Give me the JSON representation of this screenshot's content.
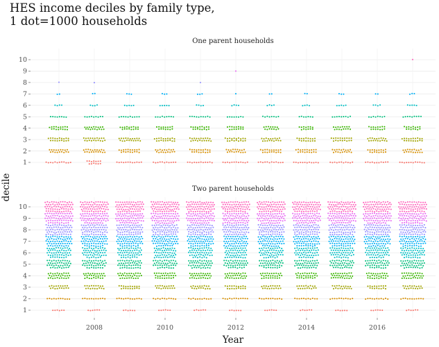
{
  "chart_data": {
    "type": "scatter",
    "chart_kind": "beeswarm dot plot (faceted)",
    "title_lines": [
      "HES income deciles by family type,",
      "1 dot=1000 households"
    ],
    "xlabel": "Year",
    "ylabel": "decile",
    "x_ticks": [
      "2008",
      "2010",
      "2012",
      "2014",
      "2016"
    ],
    "x_categories": [
      2007,
      2008,
      2009,
      2010,
      2011,
      2012,
      2013,
      2014,
      2015,
      2016,
      2017
    ],
    "y_ticks": [
      "1",
      "2",
      "3",
      "4",
      "5",
      "6",
      "7",
      "8",
      "9",
      "10"
    ],
    "ylim": [
      0.5,
      10.5
    ],
    "grid": true,
    "legend": "none",
    "decile_colors": [
      "#f8766d",
      "#d89000",
      "#a3a500",
      "#39b600",
      "#00bf7d",
      "#00bfc4",
      "#00b0f6",
      "#9590ff",
      "#e76bf3",
      "#ff62bc"
    ],
    "panels": [
      {
        "title": "One parent households",
        "dots_per_decile_by_year": [
          [
            12,
            18,
            19,
            17,
            8,
            4,
            2,
            1,
            0,
            0
          ],
          [
            13,
            20,
            20,
            18,
            9,
            4,
            2,
            1,
            0,
            0
          ],
          [
            12,
            19,
            20,
            17,
            10,
            5,
            3,
            0,
            0,
            0
          ],
          [
            11,
            18,
            19,
            15,
            9,
            5,
            3,
            0,
            0,
            0
          ],
          [
            12,
            19,
            20,
            17,
            10,
            4,
            3,
            1,
            0,
            0
          ],
          [
            12,
            18,
            19,
            15,
            8,
            4,
            1,
            0,
            1,
            0
          ],
          [
            12,
            19,
            18,
            14,
            8,
            4,
            2,
            0,
            0,
            0
          ],
          [
            12,
            19,
            17,
            13,
            7,
            4,
            2,
            0,
            0,
            0
          ],
          [
            11,
            18,
            19,
            16,
            9,
            5,
            3,
            0,
            0,
            0
          ],
          [
            11,
            17,
            18,
            15,
            8,
            4,
            2,
            0,
            0,
            0
          ],
          [
            12,
            18,
            19,
            15,
            9,
            5,
            3,
            0,
            0,
            1
          ]
        ]
      },
      {
        "title": "Two parent households",
        "dots_per_decile_by_year": [
          [
            6,
            11,
            18,
            30,
            42,
            52,
            58,
            60,
            62,
            64
          ],
          [
            6,
            11,
            18,
            29,
            41,
            51,
            57,
            59,
            61,
            63
          ],
          [
            6,
            12,
            19,
            31,
            43,
            52,
            57,
            59,
            61,
            63
          ],
          [
            6,
            11,
            18,
            29,
            41,
            50,
            56,
            59,
            61,
            63
          ],
          [
            6,
            11,
            18,
            30,
            42,
            51,
            57,
            59,
            61,
            63
          ],
          [
            6,
            12,
            19,
            30,
            41,
            50,
            55,
            58,
            60,
            62
          ],
          [
            6,
            11,
            18,
            29,
            41,
            51,
            56,
            59,
            61,
            63
          ],
          [
            6,
            11,
            18,
            29,
            42,
            51,
            57,
            59,
            61,
            63
          ],
          [
            6,
            11,
            18,
            30,
            42,
            51,
            57,
            59,
            61,
            63
          ],
          [
            6,
            11,
            17,
            29,
            41,
            51,
            56,
            59,
            61,
            63
          ],
          [
            6,
            11,
            18,
            30,
            42,
            52,
            57,
            60,
            62,
            64
          ]
        ]
      }
    ]
  }
}
